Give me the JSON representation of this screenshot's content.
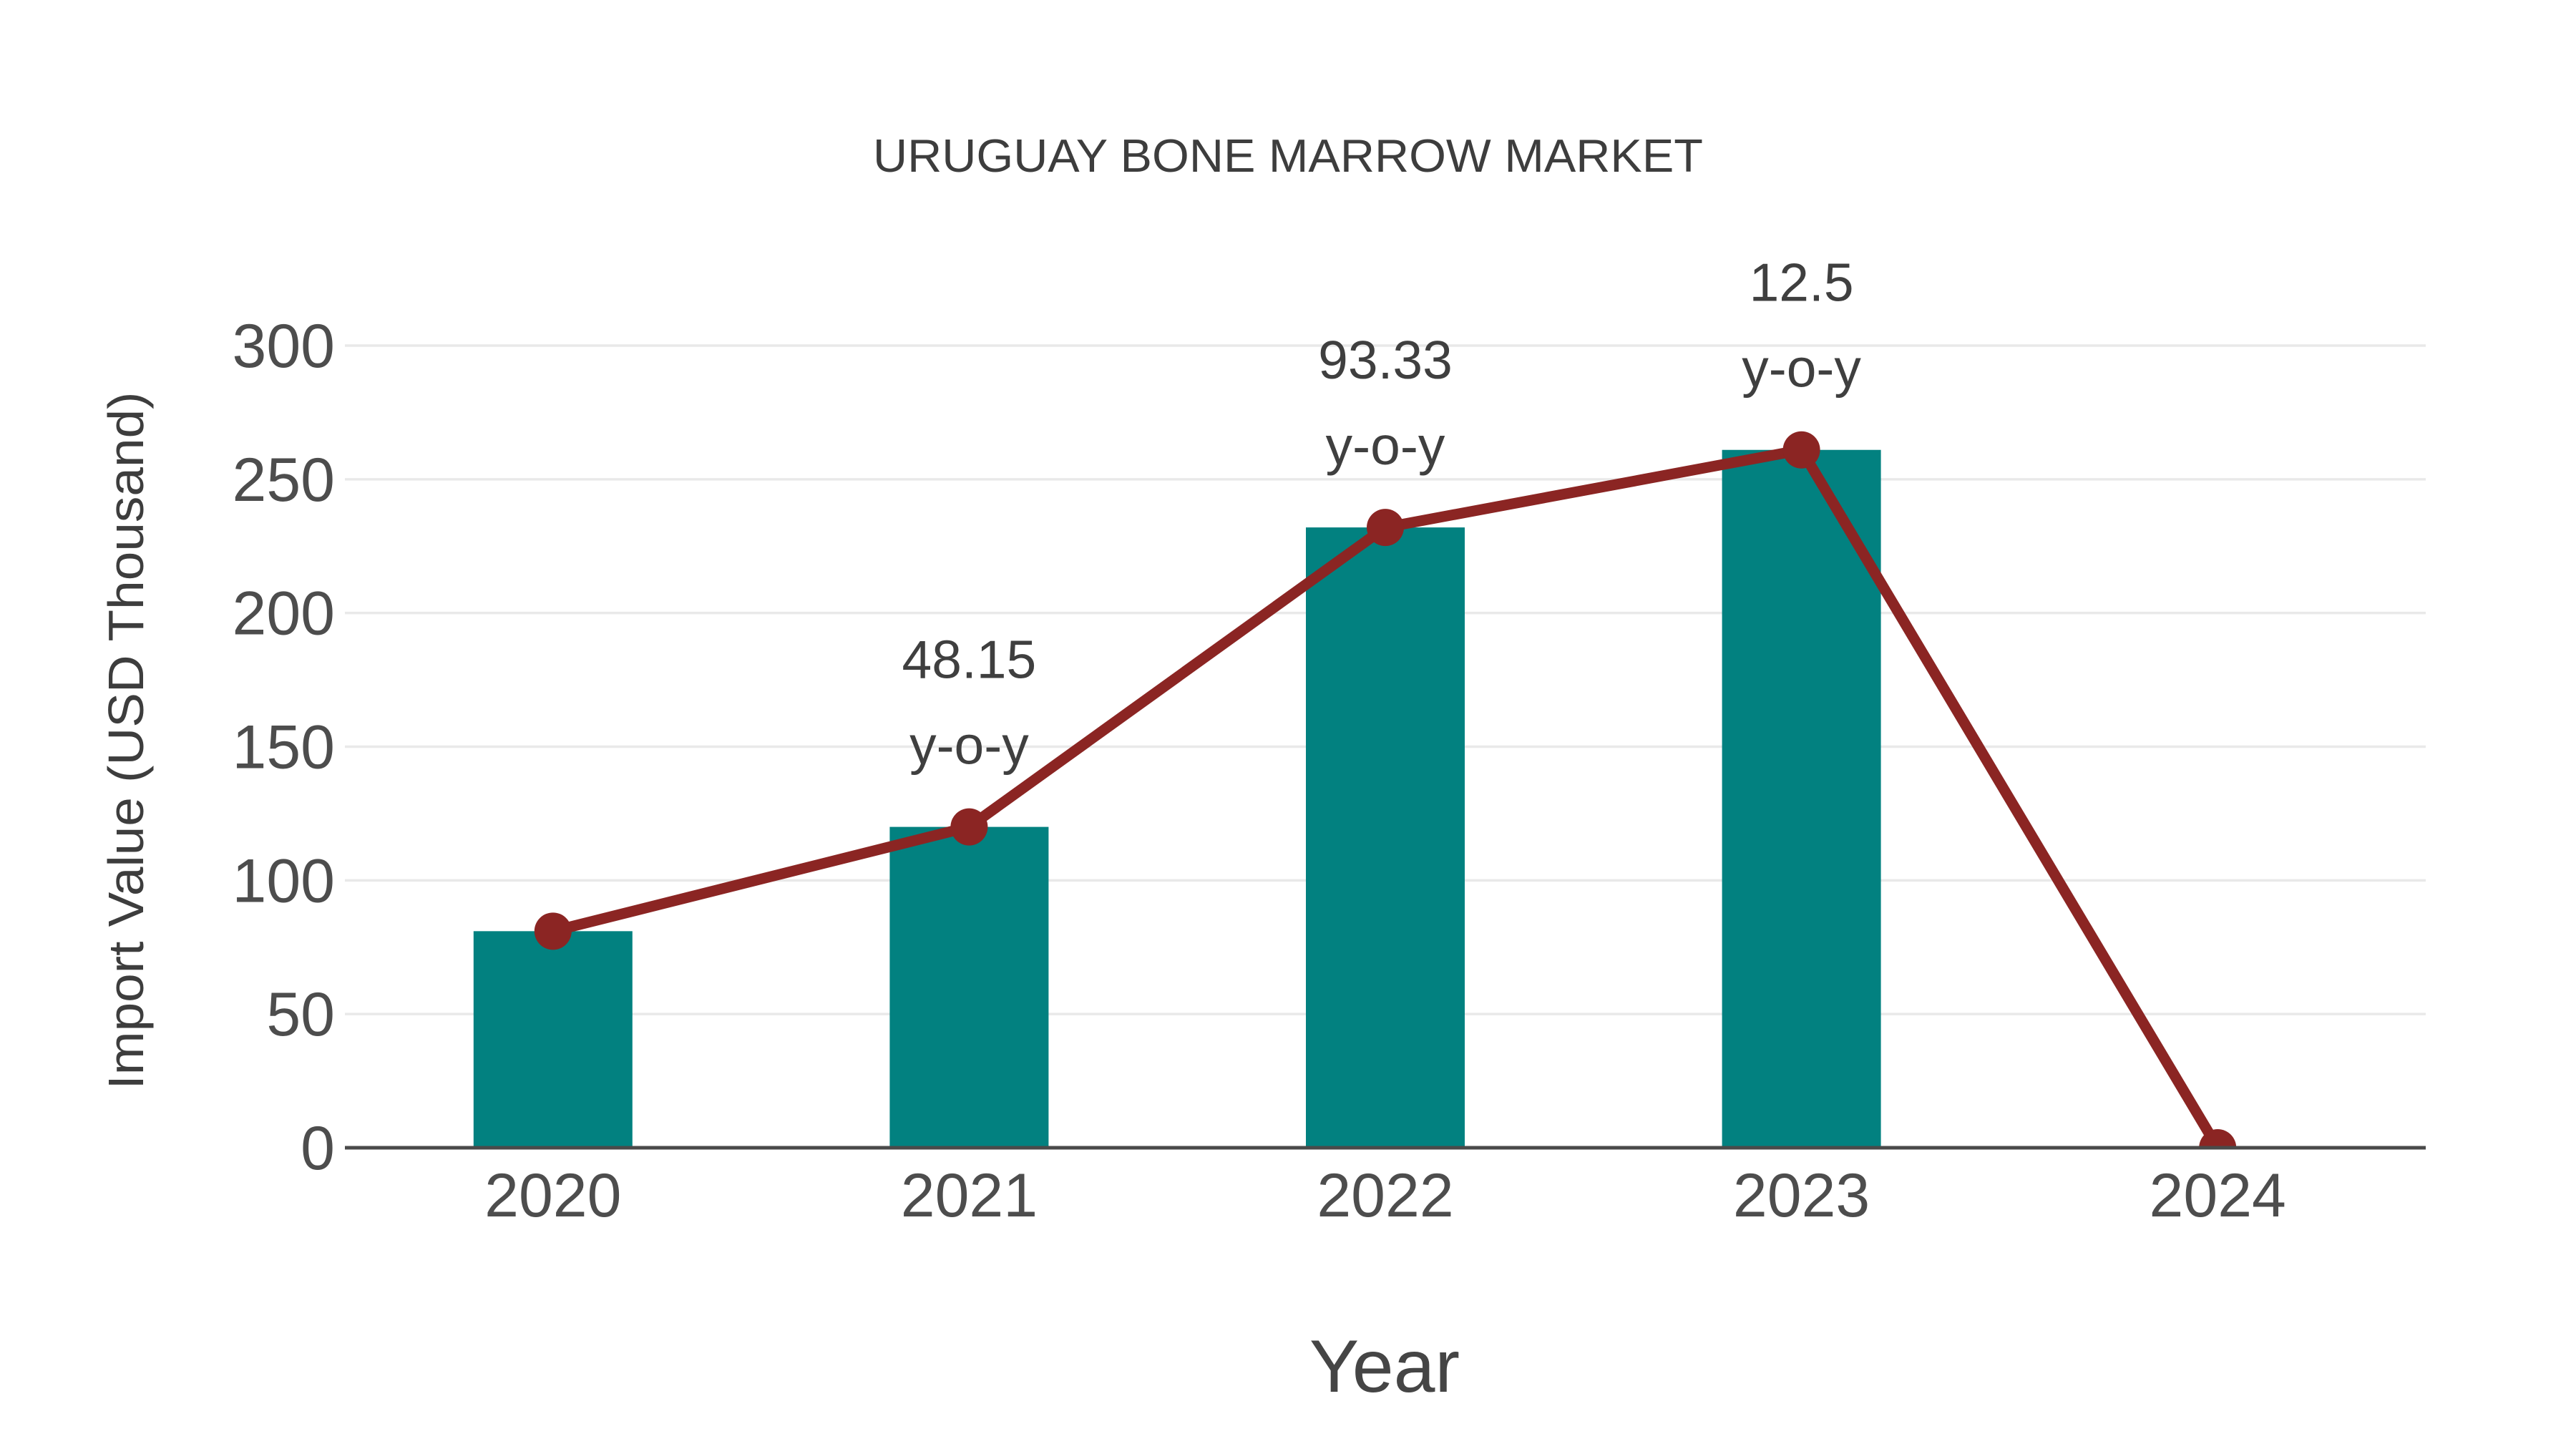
{
  "page": {
    "background": "#ffffff"
  },
  "chart_data": {
    "type": "combo",
    "title": "URUGUAY BONE MARROW MARKET",
    "xlabel": "Year",
    "ylabel": "Import Value (USD Thousand)",
    "categories": [
      "2020",
      "2021",
      "2022",
      "2023",
      "2024"
    ],
    "series": [
      {
        "name": "import-value-bars",
        "type": "bar",
        "values": [
          81,
          120,
          232,
          261,
          0
        ],
        "color": "#028180"
      },
      {
        "name": "import-value-line",
        "type": "line",
        "values": [
          81,
          120,
          232,
          261,
          0
        ],
        "color": "#8b2523"
      }
    ],
    "annotations": [
      {
        "category": "2021",
        "lines": [
          "48.15",
          "y-o-y"
        ]
      },
      {
        "category": "2022",
        "lines": [
          "93.33",
          "y-o-y"
        ]
      },
      {
        "category": "2023",
        "lines": [
          "12.5",
          "y-o-y"
        ]
      }
    ],
    "y_ticks": [
      0,
      50,
      100,
      150,
      200,
      250,
      300
    ],
    "ylim": [
      0,
      300
    ],
    "grid": true,
    "legend_position": "none",
    "colors": {
      "grid": "#e9e9e9",
      "axis_line": "#4a4a4a",
      "tick_text": "#4d4d4d",
      "title_text": "#3d3d3d",
      "annotation_text": "#3f3f3f"
    }
  }
}
